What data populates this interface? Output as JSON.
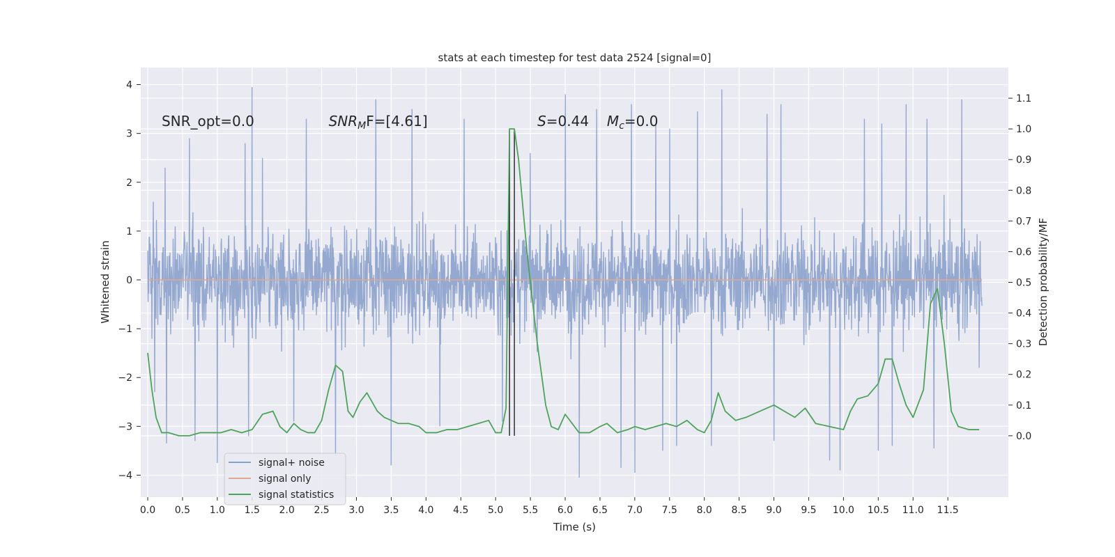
{
  "chart_data": {
    "type": "line",
    "title": "stats at each timestep for test data 2524 [signal=0]",
    "xlabel": "Time (s)",
    "ylabel_left": "Whitened strain",
    "ylabel_right": "Detection probability/MF",
    "xlim": [
      -0.1,
      12.37
    ],
    "ylim_left": [
      -4.45,
      4.35
    ],
    "ylim_right": [
      -0.2,
      1.2
    ],
    "x_ticks": [
      0.0,
      0.5,
      1.0,
      1.5,
      2.0,
      2.5,
      3.0,
      3.5,
      4.0,
      4.5,
      5.0,
      5.5,
      6.0,
      6.5,
      7.0,
      7.5,
      8.0,
      8.5,
      9.0,
      9.5,
      10.0,
      10.5,
      11.0,
      11.5
    ],
    "x_tick_labels": [
      "0.0",
      "0.5",
      "1.0",
      "1.5",
      "2.0",
      "2.5",
      "3.0",
      "3.5",
      "4.0",
      "4.5",
      "5.0",
      "5.5",
      "6.0",
      "6.5",
      "7.0",
      "7.5",
      "8.0",
      "8.5",
      "9.0",
      "9.5",
      "10.0",
      "10.5",
      "11.0",
      "11.5"
    ],
    "y_left_ticks": [
      -4,
      -3,
      -2,
      -1,
      0,
      1,
      2,
      3,
      4
    ],
    "y_left_tick_labels": [
      "−4",
      "−3",
      "−2",
      "−1",
      "0",
      "1",
      "2",
      "3",
      "4"
    ],
    "y_right_ticks": [
      0.0,
      0.1,
      0.2,
      0.3,
      0.4,
      0.5,
      0.6,
      0.7,
      0.8,
      0.9,
      1.0,
      1.1
    ],
    "y_right_tick_labels": [
      "0.0",
      "0.1",
      "0.2",
      "0.3",
      "0.4",
      "0.5",
      "0.6",
      "0.7",
      "0.8",
      "0.9",
      "1.0",
      "1.1"
    ],
    "grid": true,
    "legend_position": "lower-left",
    "series": [
      {
        "name": "signal+ noise",
        "axis": "left",
        "color": "#8ba1cc",
        "x_range": [
          0.0,
          11.99
        ],
        "envelope_typical_max": 1.9,
        "envelope_typical_min": -1.9,
        "peak_max": [
          [
            0.08,
            1.6
          ],
          [
            0.25,
            2.3
          ],
          [
            0.6,
            2.9
          ],
          [
            1.4,
            2.8
          ],
          [
            1.5,
            3.95
          ],
          [
            1.65,
            2.5
          ],
          [
            2.28,
            3.3
          ],
          [
            3.28,
            3.7
          ],
          [
            3.8,
            3.5
          ],
          [
            4.55,
            3.3
          ],
          [
            5.2,
            3.1
          ],
          [
            5.5,
            2.6
          ],
          [
            6.0,
            3.8
          ],
          [
            6.45,
            3.5
          ],
          [
            6.95,
            3.6
          ],
          [
            7.3,
            3.2
          ],
          [
            7.5,
            3.1
          ],
          [
            7.9,
            3.45
          ],
          [
            8.25,
            3.9
          ],
          [
            8.9,
            3.4
          ],
          [
            9.1,
            3.6
          ],
          [
            9.8,
            3.4
          ],
          [
            10.3,
            3.3
          ],
          [
            10.55,
            3.2
          ],
          [
            10.9,
            3.6
          ],
          [
            11.2,
            3.3
          ],
          [
            11.7,
            3.7
          ],
          [
            11.95,
            2.0
          ]
        ],
        "peak_min": [
          [
            0.1,
            -2.3
          ],
          [
            0.27,
            -3.35
          ],
          [
            0.68,
            -3.3
          ],
          [
            1.0,
            -3.75
          ],
          [
            1.45,
            -3.2
          ],
          [
            2.1,
            -2.9
          ],
          [
            2.7,
            -3.6
          ],
          [
            3.5,
            -3.8
          ],
          [
            4.2,
            -3.0
          ],
          [
            5.1,
            -2.9
          ],
          [
            6.2,
            -4.05
          ],
          [
            6.8,
            -3.85
          ],
          [
            7.0,
            -3.95
          ],
          [
            7.4,
            -3.5
          ],
          [
            7.6,
            -3.4
          ],
          [
            8.1,
            -3.4
          ],
          [
            9.0,
            -3.3
          ],
          [
            9.8,
            -3.7
          ],
          [
            9.95,
            -3.9
          ],
          [
            10.5,
            -3.5
          ],
          [
            10.7,
            -3.4
          ],
          [
            11.3,
            -3.45
          ],
          [
            11.95,
            -1.8
          ]
        ]
      },
      {
        "name": "signal only",
        "axis": "left",
        "color": "#e0a890",
        "x": [
          0.0,
          11.99
        ],
        "y": [
          0.0,
          0.0
        ]
      },
      {
        "name": "signal statistics",
        "axis": "right",
        "color": "#4ea35a",
        "x": [
          0.0,
          0.06,
          0.12,
          0.2,
          0.3,
          0.45,
          0.6,
          0.75,
          0.9,
          1.05,
          1.2,
          1.35,
          1.5,
          1.65,
          1.8,
          1.9,
          2.0,
          2.1,
          2.2,
          2.3,
          2.4,
          2.5,
          2.6,
          2.7,
          2.8,
          2.88,
          2.95,
          3.05,
          3.15,
          3.3,
          3.4,
          3.5,
          3.6,
          3.75,
          3.9,
          4.0,
          4.15,
          4.3,
          4.45,
          4.6,
          4.75,
          4.9,
          5.0,
          5.08,
          5.15,
          5.2,
          5.27,
          5.33,
          5.45,
          5.6,
          5.72,
          5.8,
          5.9,
          6.0,
          6.1,
          6.2,
          6.35,
          6.5,
          6.6,
          6.75,
          6.9,
          7.0,
          7.15,
          7.3,
          7.45,
          7.6,
          7.75,
          7.9,
          8.0,
          8.1,
          8.2,
          8.3,
          8.45,
          8.6,
          8.8,
          9.0,
          9.15,
          9.3,
          9.45,
          9.6,
          9.8,
          10.0,
          10.1,
          10.2,
          10.35,
          10.5,
          10.6,
          10.7,
          10.8,
          10.9,
          11.0,
          11.15,
          11.25,
          11.35,
          11.45,
          11.55,
          11.65,
          11.8,
          11.95
        ],
        "y": [
          0.27,
          0.15,
          0.06,
          0.01,
          0.01,
          0.0,
          0.0,
          0.01,
          0.01,
          0.01,
          0.02,
          0.01,
          0.02,
          0.07,
          0.08,
          0.03,
          0.01,
          0.04,
          0.02,
          0.01,
          0.01,
          0.05,
          0.15,
          0.23,
          0.21,
          0.08,
          0.06,
          0.11,
          0.14,
          0.08,
          0.06,
          0.05,
          0.04,
          0.04,
          0.03,
          0.01,
          0.01,
          0.02,
          0.02,
          0.03,
          0.04,
          0.05,
          0.01,
          0.01,
          0.09,
          1.0,
          1.0,
          0.9,
          0.6,
          0.3,
          0.1,
          0.03,
          0.02,
          0.07,
          0.04,
          0.01,
          0.01,
          0.03,
          0.04,
          0.01,
          0.02,
          0.03,
          0.02,
          0.03,
          0.04,
          0.03,
          0.05,
          0.02,
          0.01,
          0.05,
          0.14,
          0.08,
          0.05,
          0.06,
          0.08,
          0.1,
          0.08,
          0.06,
          0.09,
          0.04,
          0.03,
          0.02,
          0.08,
          0.12,
          0.13,
          0.17,
          0.25,
          0.25,
          0.17,
          0.1,
          0.06,
          0.15,
          0.43,
          0.48,
          0.3,
          0.08,
          0.03,
          0.02,
          0.02
        ]
      }
    ],
    "vertical_lines": {
      "color": "#303030",
      "x": [
        5.2,
        5.27
      ],
      "y_right_range": [
        0.0,
        1.0
      ]
    },
    "annotations": [
      {
        "text": "SNR_opt=0.0",
        "x": 0.2,
        "y": 3.15,
        "axis": "left"
      },
      {
        "text_main": "SNR",
        "text_sub": "M",
        "text_tail": "F=[4.61]",
        "x": 2.6,
        "y": 3.15,
        "axis": "left"
      },
      {
        "text_main": "S",
        "text_tail": "=0.44",
        "x": 5.6,
        "y": 3.15,
        "axis": "left"
      },
      {
        "text_main": "M",
        "text_sub": "c",
        "text_tail": "=0.0",
        "x": 6.6,
        "y": 3.15,
        "axis": "left"
      }
    ],
    "legend": [
      {
        "label": "signal+ noise",
        "color": "#8ba1cc"
      },
      {
        "label": "signal only",
        "color": "#e0a890"
      },
      {
        "label": "signal statistics",
        "color": "#4ea35a"
      }
    ]
  }
}
